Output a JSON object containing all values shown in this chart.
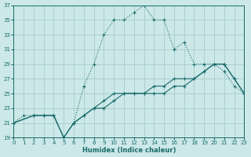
{
  "xlabel": "Humidex (Indice chaleur)",
  "bg_color": "#cce8e8",
  "grid_color": "#a8cccc",
  "line_color": "#1a6b6b",
  "xlim": [
    0,
    23
  ],
  "ylim": [
    19,
    37
  ],
  "xticks": [
    0,
    1,
    2,
    3,
    4,
    5,
    6,
    7,
    8,
    9,
    10,
    11,
    12,
    13,
    14,
    15,
    16,
    17,
    18,
    19,
    20,
    21,
    22,
    23
  ],
  "yticks": [
    19,
    21,
    23,
    25,
    27,
    29,
    31,
    33,
    35,
    37
  ],
  "series1_x": [
    0,
    1,
    2,
    3,
    4,
    5,
    6,
    7,
    8,
    9,
    10,
    11,
    12,
    13,
    14,
    15,
    16,
    17,
    18,
    19,
    20,
    21,
    22,
    23
  ],
  "series1_y": [
    21,
    22,
    22,
    22,
    22,
    19,
    21,
    26,
    29,
    33,
    35,
    35,
    36,
    37,
    35,
    35,
    31,
    32,
    29,
    29,
    29,
    28,
    26,
    25
  ],
  "series2_x": [
    0,
    2,
    3,
    4,
    5,
    6,
    7,
    8,
    9,
    10,
    11,
    12,
    13,
    14,
    15,
    16,
    17,
    18,
    19,
    20,
    21,
    22,
    23
  ],
  "series2_y": [
    21,
    22,
    22,
    22,
    19,
    21,
    22,
    23,
    23,
    24,
    25,
    25,
    25,
    25,
    25,
    26,
    26,
    27,
    28,
    29,
    29,
    27,
    25
  ],
  "series3_x": [
    0,
    2,
    3,
    4,
    5,
    6,
    7,
    8,
    9,
    10,
    11,
    12,
    13,
    14,
    15,
    16,
    17,
    18,
    19,
    20,
    21,
    22,
    23
  ],
  "series3_y": [
    21,
    22,
    22,
    22,
    19,
    21,
    22,
    23,
    24,
    25,
    25,
    25,
    25,
    26,
    26,
    27,
    27,
    27,
    28,
    29,
    29,
    27,
    25
  ]
}
